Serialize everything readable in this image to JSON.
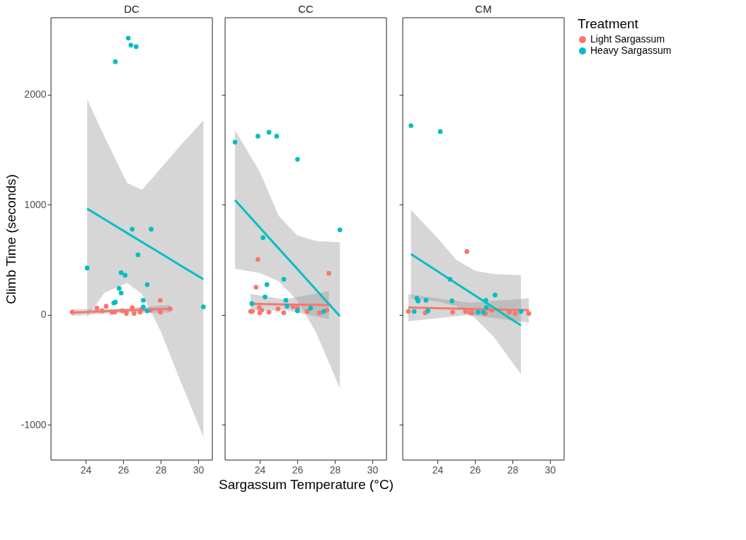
{
  "chart_data": [
    {
      "type": "scatter",
      "title": "DC",
      "ylabel": "Climb Time (seconds)",
      "xlim": [
        22.15,
        30.75
      ],
      "xticks": [
        24,
        26,
        28,
        30
      ],
      "ylim": [
        -1320,
        2700
      ],
      "yticks": [
        -1000,
        0,
        1000,
        2000
      ],
      "legend": "right",
      "legend_title": "Treatment",
      "series": [
        {
          "name": "Light Sargassum",
          "color": "#f8766d",
          "marker": "circle",
          "x": [
            23.28,
            24.6,
            25.09,
            24.88,
            25.4,
            25.54,
            25.96,
            26.17,
            26.48,
            26.58,
            26.9,
            26.97,
            27.45,
            27.98,
            27.98,
            28.5
          ],
          "values": [
            24,
            60,
            78,
            36,
            24,
            24,
            36,
            12,
            66,
            12,
            24,
            48,
            42,
            132,
            24,
            54
          ]
        },
        {
          "name": "Heavy Sargassum",
          "color": "#00bfc4",
          "marker": "circle",
          "x": [
            26.27,
            26.41,
            26.69,
            25.58,
            26.48,
            27.49,
            26.79,
            24.08,
            25.89,
            26.1,
            27.28,
            25.78,
            25.89,
            25.5,
            25.58,
            27.07,
            27.07,
            27.28,
            30.27
          ],
          "values": [
            2515,
            2450,
            2437,
            2300,
            778,
            778,
            545,
            425,
            383,
            359,
            275,
            240,
            198,
            108,
            115,
            132,
            72,
            36,
            72
          ]
        },
        {
          "type": "line",
          "color": "#f8766d",
          "x": [
            23.28,
            25.9,
            28.5
          ],
          "values": [
            20,
            38,
            55
          ],
          "lower": [
            -10,
            20,
            20
          ],
          "upper": [
            50,
            56,
            90
          ]
        },
        {
          "type": "line",
          "color": "#00bfc4",
          "x": [
            24.08,
            25,
            26.2,
            27,
            28,
            29,
            30.27
          ],
          "values": [
            964,
            869,
            744,
            661,
            558,
            454,
            323
          ],
          "lower": [
            -20,
            200,
            290,
            190,
            -150,
            -580,
            -1110
          ],
          "upper": [
            1958,
            1620,
            1200,
            1135,
            1330,
            1530,
            1766
          ]
        }
      ]
    },
    {
      "type": "scatter",
      "title": "CC",
      "xlabel": "Sargassum Temperature (°C)",
      "xlim": [
        22.15,
        30.75
      ],
      "xticks": [
        24,
        26,
        28,
        30
      ],
      "ylim": [
        -1320,
        2700
      ],
      "yticks": [
        -1000,
        0,
        1000,
        2000
      ],
      "tick_labels": "x",
      "series": [
        {
          "color": "#f8766d",
          "marker": "circle",
          "x": [
            23.9,
            27.68,
            23.8,
            23.51,
            23.6,
            23.97,
            24.0,
            24.1,
            24.49,
            24.97,
            25.28,
            25.77,
            26.01,
            26.53,
            27.19,
            27.58
          ],
          "values": [
            503,
            377,
            251,
            30,
            30,
            66,
            18,
            42,
            24,
            54,
            18,
            72,
            60,
            30,
            18,
            42
          ]
        },
        {
          "color": "#00bfc4",
          "marker": "circle",
          "x": [
            22.68,
            23.9,
            24.49,
            24.9,
            26.01,
            28.27,
            24.17,
            25.28,
            24.38,
            24.28,
            25.39,
            23.58,
            25.46,
            26.01,
            26.71,
            27.4
          ],
          "values": [
            1569,
            1623,
            1659,
            1623,
            1413,
            772,
            701,
            323,
            275,
            162,
            132,
            102,
            78,
            36,
            60,
            30
          ]
        },
        {
          "type": "line",
          "color": "#f8766d",
          "x": [
            23.51,
            25.3,
            27.68
          ],
          "values": [
            100,
            94,
            88
          ],
          "lower": [
            30,
            45,
            -40
          ],
          "upper": [
            190,
            140,
            215
          ]
        },
        {
          "type": "line",
          "color": "#00bfc4",
          "x": [
            22.68,
            24,
            25,
            26,
            27,
            28.27
          ],
          "values": [
            1042,
            793,
            604,
            416,
            227,
            -12
          ],
          "lower": [
            419,
            380,
            305,
            130,
            -160,
            -671
          ],
          "upper": [
            1677,
            1300,
            900,
            720,
            670,
            660
          ]
        }
      ]
    },
    {
      "type": "scatter",
      "title": "CM",
      "xlim": [
        22.15,
        30.75
      ],
      "xticks": [
        24,
        26,
        28,
        30
      ],
      "ylim": [
        -1320,
        2700
      ],
      "yticks": [
        -1000,
        0,
        1000,
        2000
      ],
      "tick_labels": "x",
      "series": [
        {
          "color": "#f8766d",
          "marker": "circle",
          "x": [
            25.57,
            22.45,
            23.35,
            24.81,
            25.5,
            25.75,
            25.85,
            26.55,
            26.89,
            27.83,
            28.14,
            28.87
          ],
          "values": [
            575,
            30,
            18,
            24,
            30,
            18,
            18,
            12,
            42,
            24,
            12,
            12
          ]
        },
        {
          "color": "#00bfc4",
          "marker": "circle",
          "x": [
            22.59,
            24.15,
            24.67,
            22.9,
            22.97,
            23.39,
            24.77,
            26.58,
            27.07,
            22.76,
            23.49,
            26.16,
            26.44,
            26.61,
            28.45
          ],
          "values": [
            1719,
            1665,
            323,
            150,
            126,
            132,
            126,
            132,
            180,
            30,
            36,
            24,
            24,
            66,
            30
          ]
        },
        {
          "type": "line",
          "color": "#f8766d",
          "x": [
            22.45,
            25.7,
            28.87
          ],
          "values": [
            66,
            54,
            42
          ],
          "lower": [
            -60,
            0,
            -72
          ],
          "upper": [
            186,
            110,
            150
          ]
        },
        {
          "type": "line",
          "color": "#00bfc4",
          "x": [
            22.59,
            24,
            25,
            26,
            27,
            28.45
          ],
          "values": [
            551,
            395,
            285,
            175,
            64,
            -96
          ],
          "lower": [
            150,
            120,
            80,
            -30,
            -200,
            -540
          ],
          "upper": [
            952,
            700,
            500,
            400,
            370,
            360
          ]
        }
      ]
    }
  ]
}
